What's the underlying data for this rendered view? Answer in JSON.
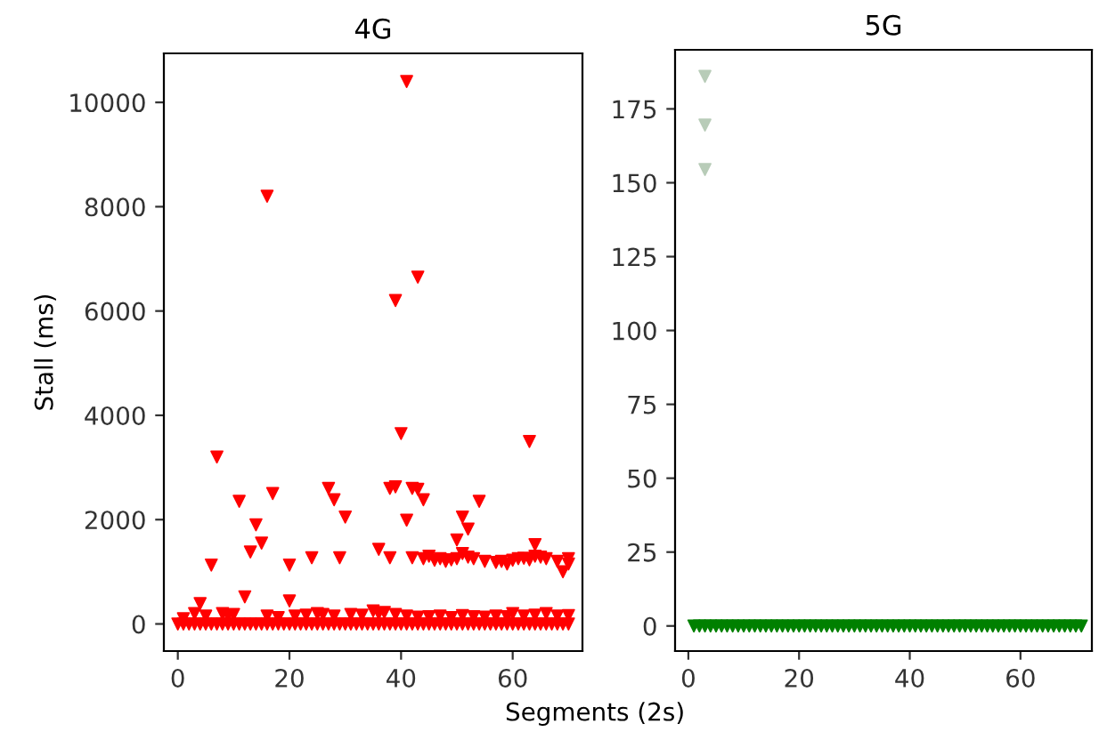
{
  "chart_data": [
    {
      "type": "scatter",
      "title": "4G",
      "xlabel": "Segments (2s)",
      "ylabel": "Stall (ms)",
      "xlim": [
        -2.5,
        72.5
      ],
      "ylim": [
        -520,
        10940
      ],
      "xticks": [
        0,
        20,
        40,
        60
      ],
      "yticks": [
        0,
        2000,
        4000,
        6000,
        8000,
        10000
      ],
      "grid": false,
      "marker": "triangle",
      "series": [
        {
          "color": "#ff0000",
          "x": [
            0,
            1,
            2,
            3,
            4,
            5,
            6,
            7,
            8,
            9,
            10,
            11,
            12,
            13,
            14,
            15,
            16,
            17,
            18,
            19,
            20,
            21,
            22,
            23,
            24,
            25,
            26,
            27,
            28,
            29,
            30,
            31,
            32,
            33,
            34,
            35,
            36,
            37,
            38,
            39,
            40,
            41,
            42,
            43,
            44,
            45,
            46,
            47,
            48,
            49,
            50,
            51,
            52,
            53,
            54,
            55,
            56,
            57,
            58,
            59,
            60,
            61,
            62,
            63,
            64,
            65,
            66,
            67,
            68,
            69,
            70
          ],
          "values": [
            0,
            0,
            0,
            0,
            0,
            0,
            0,
            0,
            0,
            0,
            0,
            0,
            0,
            0,
            0,
            0,
            0,
            0,
            0,
            0,
            0,
            0,
            0,
            0,
            0,
            0,
            0,
            0,
            0,
            0,
            0,
            0,
            0,
            0,
            0,
            0,
            0,
            0,
            0,
            0,
            0,
            0,
            0,
            0,
            0,
            0,
            0,
            0,
            0,
            0,
            0,
            0,
            0,
            0,
            0,
            0,
            0,
            0,
            0,
            0,
            0,
            0,
            0,
            0,
            0,
            0,
            0,
            0,
            0,
            0,
            0
          ]
        },
        {
          "color": "#ff0000",
          "x": [
            1,
            3,
            5,
            8,
            9,
            10,
            16,
            18,
            21,
            23,
            25,
            26,
            28,
            31,
            33,
            35,
            36,
            37,
            39,
            41,
            43,
            45,
            47,
            49,
            51,
            53,
            55,
            57,
            59,
            60,
            62,
            64,
            66,
            68,
            70
          ],
          "values": [
            100,
            200,
            150,
            200,
            150,
            180,
            150,
            120,
            150,
            170,
            200,
            180,
            150,
            180,
            170,
            250,
            200,
            220,
            180,
            150,
            130,
            140,
            150,
            120,
            160,
            140,
            130,
            150,
            140,
            200,
            150,
            170,
            200,
            150,
            160
          ]
        },
        {
          "color": "#ff0000",
          "x": [
            41,
            16,
            43,
            39,
            40,
            63,
            7,
            17,
            27,
            28,
            30,
            11,
            14,
            15,
            13,
            6,
            12,
            20,
            24,
            29,
            36,
            38,
            38,
            39,
            42,
            43,
            44,
            41,
            54,
            51,
            52,
            50,
            64,
            4,
            20
          ],
          "values": [
            10400,
            8200,
            6650,
            6200,
            3650,
            3500,
            3200,
            2500,
            2600,
            2380,
            2050,
            2350,
            1900,
            1550,
            1380,
            1130,
            520,
            1130,
            1270,
            1270,
            1430,
            2600,
            1270,
            2630,
            2600,
            2580,
            2380,
            1990,
            2350,
            2050,
            1820,
            1610,
            1520,
            390,
            440
          ]
        },
        {
          "color": "#ff0000",
          "x": [
            42,
            44,
            45,
            46,
            47,
            48,
            49,
            50,
            51,
            52,
            53,
            55,
            57,
            58,
            59,
            60,
            61,
            62,
            63,
            64,
            65,
            66,
            68,
            69,
            70,
            70
          ],
          "values": [
            1270,
            1250,
            1300,
            1220,
            1250,
            1200,
            1230,
            1250,
            1350,
            1280,
            1250,
            1200,
            1180,
            1200,
            1150,
            1220,
            1250,
            1260,
            1230,
            1300,
            1280,
            1250,
            1200,
            1000,
            1250,
            1150
          ]
        }
      ]
    },
    {
      "type": "scatter",
      "title": "5G",
      "xlim": [
        -2.4,
        72.9
      ],
      "ylim": [
        -8.5,
        195
      ],
      "xticks": [
        0,
        20,
        40,
        60
      ],
      "yticks": [
        0,
        25,
        50,
        75,
        100,
        125,
        150,
        175
      ],
      "grid": false,
      "marker": "triangle",
      "series": [
        {
          "color": "#008000",
          "x": [
            1,
            2,
            3,
            4,
            5,
            6,
            7,
            8,
            9,
            10,
            11,
            12,
            13,
            14,
            15,
            16,
            17,
            18,
            19,
            20,
            21,
            22,
            23,
            24,
            25,
            26,
            27,
            28,
            29,
            30,
            31,
            32,
            33,
            34,
            35,
            36,
            37,
            38,
            39,
            40,
            41,
            42,
            43,
            44,
            45,
            46,
            47,
            48,
            49,
            50,
            51,
            52,
            53,
            54,
            55,
            56,
            57,
            58,
            59,
            60,
            61,
            62,
            63,
            64,
            65,
            66,
            67,
            68,
            69,
            70,
            71
          ],
          "values": [
            0,
            0,
            0,
            0,
            0,
            0,
            0,
            0,
            0,
            0,
            0,
            0,
            0,
            0,
            0,
            0,
            0,
            0,
            0,
            0,
            0,
            0,
            0,
            0,
            0,
            0,
            0,
            0,
            0,
            0,
            0,
            0,
            0,
            0,
            0,
            0,
            0,
            0,
            0,
            0,
            0,
            0,
            0,
            0,
            0,
            0,
            0,
            0,
            0,
            0,
            0,
            0,
            0,
            0,
            0,
            0,
            0,
            0,
            0,
            0,
            0,
            0,
            0,
            0,
            0,
            0,
            0,
            0,
            0,
            0,
            0
          ]
        },
        {
          "color": "#b8ccb8",
          "x": [
            3,
            3,
            3
          ],
          "values": [
            186,
            169.5,
            154.5
          ]
        }
      ]
    }
  ]
}
